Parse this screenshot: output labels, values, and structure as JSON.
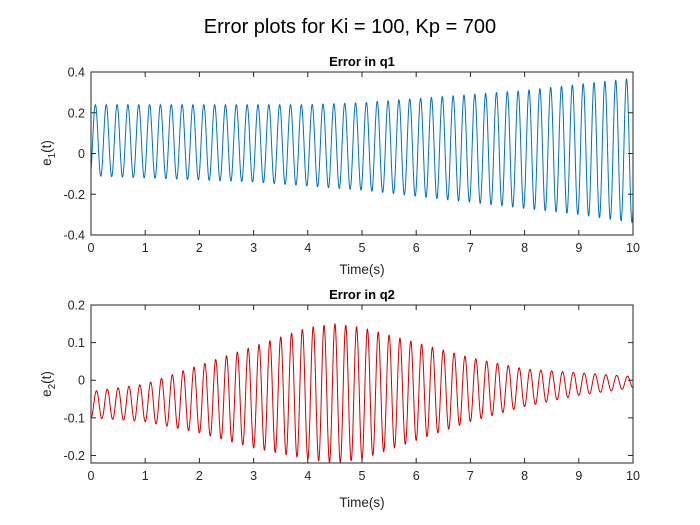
{
  "figure_title": "Error plots for Ki = 100, Kp = 700",
  "chart_data": [
    {
      "type": "line",
      "title": "Error in q1",
      "xlabel": "Time(s)",
      "ylabel_base": "e",
      "ylabel_sub": "1",
      "ylabel_suffix": "(t)",
      "xlim": [
        0,
        10
      ],
      "ylim": [
        -0.4,
        0.4
      ],
      "xticks": [
        0,
        1,
        2,
        3,
        4,
        5,
        6,
        7,
        8,
        9,
        10
      ],
      "xtick_labels": [
        "0",
        "1",
        "2",
        "3",
        "4",
        "5",
        "6",
        "7",
        "8",
        "9",
        "10"
      ],
      "yticks": [
        -0.4,
        -0.2,
        0,
        0.2,
        0.4
      ],
      "ytick_labels": [
        "-0.4",
        "-0.2",
        "0",
        "0.2",
        "0.4"
      ],
      "grid": false,
      "color": "#0072BD",
      "series": [
        {
          "frequency_hz": 5,
          "envelope": {
            "t": [
              0,
              1,
              2,
              3,
              4,
              5,
              6,
              7,
              8,
              9,
              10
            ],
            "max": [
              0.24,
              0.24,
              0.24,
              0.24,
              0.24,
              0.25,
              0.27,
              0.29,
              0.31,
              0.34,
              0.37
            ],
            "min": [
              -0.11,
              -0.12,
              -0.13,
              -0.14,
              -0.16,
              -0.18,
              -0.21,
              -0.24,
              -0.27,
              -0.3,
              -0.34
            ]
          },
          "start_value": -0.08
        }
      ]
    },
    {
      "type": "line",
      "title": "Error in q2",
      "xlabel": "Time(s)",
      "ylabel_base": "e",
      "ylabel_sub": "2",
      "ylabel_suffix": "(t)",
      "xlim": [
        0,
        10
      ],
      "ylim": [
        -0.22,
        0.2
      ],
      "xticks": [
        0,
        1,
        2,
        3,
        4,
        5,
        6,
        7,
        8,
        9,
        10
      ],
      "xtick_labels": [
        "0",
        "1",
        "2",
        "3",
        "4",
        "5",
        "6",
        "7",
        "8",
        "9",
        "10"
      ],
      "yticks": [
        -0.2,
        -0.1,
        0,
        0.1,
        0.2
      ],
      "ytick_labels": [
        "-0.2",
        "-0.1",
        "0",
        "0.1",
        "0.2"
      ],
      "grid": false,
      "color": "#D00000",
      "series": [
        {
          "frequency_hz": 5,
          "envelope": {
            "t": [
              0,
              1,
              2,
              3,
              4,
              4.5,
              5,
              6,
              7,
              8,
              9,
              10
            ],
            "max": [
              -0.03,
              -0.01,
              0.04,
              0.09,
              0.14,
              0.15,
              0.14,
              0.1,
              0.06,
              0.03,
              0.02,
              0.01
            ],
            "min": [
              -0.1,
              -0.11,
              -0.14,
              -0.18,
              -0.21,
              -0.22,
              -0.21,
              -0.16,
              -0.11,
              -0.07,
              -0.04,
              -0.02
            ]
          },
          "start_value": -0.1
        }
      ]
    }
  ]
}
